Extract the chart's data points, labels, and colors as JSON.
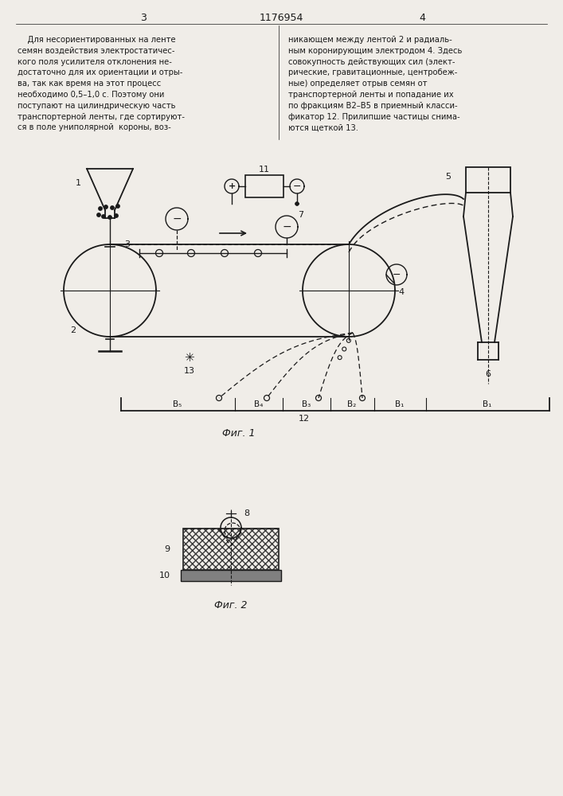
{
  "page_width": 7.07,
  "page_height": 10.0,
  "bg_color": "#f0ede8",
  "line_color": "#1a1a1a",
  "text_color": "#1a1a1a",
  "header_page_left": "3",
  "header_center": "1176954",
  "header_page_right": "4",
  "left_text": "    Для несориентированных на ленте\nсемян воздействия электростатичес-\nкого поля усилителя отклонения не-\nдостаточно для их ориентации и отры-\nва, так как время на этот процесс\nнеобходимо 0,5–1,0 с. Поэтому они\nпоступают на цилиндрическую часть\nтранспортерной ленты, где сортируют-\nся в поле униполярной  короны, воз-",
  "right_text": "никающем между лентой 2 и радиаль-\nным коронирующим электродом 4. Здесь\nсовокупность действующих сил (элект-\nрические, гравитационные, центробеж-\nные) определяет отрыв семян от\nтранспортерной ленты и попадание их\nпо фракциям В2–В5 в приемный класси-\nфикатор 12. Прилипшие частицы снима-\nются щеткой 13.",
  "fig1_caption": "Фиг. 1",
  "fig2_caption": "Фиг. 2"
}
